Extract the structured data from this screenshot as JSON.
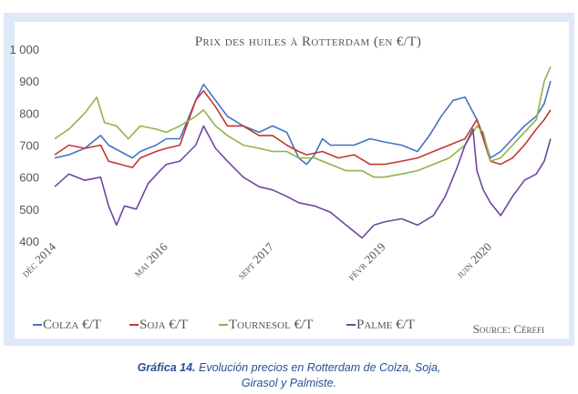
{
  "chart_data": {
    "type": "line",
    "title": "Prix des huiles à Rotterdam (en €/T)",
    "source": "Source: Cérefi",
    "ylim": [
      400,
      1000
    ],
    "yticks": [
      "400",
      "500",
      "600",
      "700",
      "800",
      "900",
      "1 000"
    ],
    "ytick_values": [
      400,
      500,
      600,
      700,
      800,
      900,
      1000
    ],
    "xlim": [
      2014.92,
      2021.25
    ],
    "xticks": [
      {
        "label": "déc 2014",
        "value": 2014.92
      },
      {
        "label": "mai 2016",
        "value": 2016.33
      },
      {
        "label": "sept 2017",
        "value": 2017.67
      },
      {
        "label": "févr 2019",
        "value": 2019.08
      },
      {
        "label": "juin 2020",
        "value": 2020.42
      }
    ],
    "grid": false,
    "legend_position": "bottom",
    "series": [
      {
        "name": "Colza €/T",
        "color": "#4472c4",
        "values": [
          [
            2014.92,
            660
          ],
          [
            2015.1,
            670
          ],
          [
            2015.3,
            690
          ],
          [
            2015.5,
            730
          ],
          [
            2015.6,
            700
          ],
          [
            2015.75,
            680
          ],
          [
            2015.9,
            660
          ],
          [
            2016.0,
            680
          ],
          [
            2016.2,
            700
          ],
          [
            2016.33,
            720
          ],
          [
            2016.5,
            720
          ],
          [
            2016.7,
            840
          ],
          [
            2016.8,
            890
          ],
          [
            2016.95,
            840
          ],
          [
            2017.1,
            790
          ],
          [
            2017.3,
            760
          ],
          [
            2017.5,
            740
          ],
          [
            2017.67,
            760
          ],
          [
            2017.85,
            740
          ],
          [
            2018.0,
            660
          ],
          [
            2018.1,
            640
          ],
          [
            2018.2,
            670
          ],
          [
            2018.3,
            720
          ],
          [
            2018.4,
            700
          ],
          [
            2018.5,
            700
          ],
          [
            2018.7,
            700
          ],
          [
            2018.9,
            720
          ],
          [
            2019.08,
            710
          ],
          [
            2019.3,
            700
          ],
          [
            2019.5,
            680
          ],
          [
            2019.65,
            730
          ],
          [
            2019.8,
            790
          ],
          [
            2019.95,
            840
          ],
          [
            2020.1,
            850
          ],
          [
            2020.25,
            780
          ],
          [
            2020.33,
            730
          ],
          [
            2020.42,
            660
          ],
          [
            2020.55,
            680
          ],
          [
            2020.7,
            720
          ],
          [
            2020.85,
            760
          ],
          [
            2021.0,
            790
          ],
          [
            2021.1,
            830
          ],
          [
            2021.18,
            900
          ]
        ]
      },
      {
        "name": "Soja €/T",
        "color": "#c0392b",
        "values": [
          [
            2014.92,
            670
          ],
          [
            2015.1,
            700
          ],
          [
            2015.3,
            690
          ],
          [
            2015.5,
            700
          ],
          [
            2015.6,
            650
          ],
          [
            2015.75,
            640
          ],
          [
            2015.9,
            630
          ],
          [
            2016.0,
            660
          ],
          [
            2016.2,
            680
          ],
          [
            2016.33,
            690
          ],
          [
            2016.5,
            700
          ],
          [
            2016.7,
            840
          ],
          [
            2016.8,
            870
          ],
          [
            2016.95,
            820
          ],
          [
            2017.1,
            760
          ],
          [
            2017.3,
            760
          ],
          [
            2017.5,
            730
          ],
          [
            2017.67,
            730
          ],
          [
            2017.85,
            700
          ],
          [
            2018.0,
            680
          ],
          [
            2018.1,
            670
          ],
          [
            2018.3,
            680
          ],
          [
            2018.5,
            660
          ],
          [
            2018.7,
            670
          ],
          [
            2018.9,
            640
          ],
          [
            2019.08,
            640
          ],
          [
            2019.3,
            650
          ],
          [
            2019.5,
            660
          ],
          [
            2019.7,
            680
          ],
          [
            2019.9,
            700
          ],
          [
            2020.1,
            720
          ],
          [
            2020.25,
            780
          ],
          [
            2020.33,
            720
          ],
          [
            2020.42,
            650
          ],
          [
            2020.55,
            640
          ],
          [
            2020.7,
            660
          ],
          [
            2020.85,
            700
          ],
          [
            2021.0,
            750
          ],
          [
            2021.1,
            780
          ],
          [
            2021.18,
            810
          ]
        ]
      },
      {
        "name": "Tournesol €/T",
        "color": "#8db34d",
        "values": [
          [
            2014.92,
            720
          ],
          [
            2015.1,
            750
          ],
          [
            2015.3,
            800
          ],
          [
            2015.45,
            850
          ],
          [
            2015.55,
            770
          ],
          [
            2015.7,
            760
          ],
          [
            2015.85,
            720
          ],
          [
            2016.0,
            760
          ],
          [
            2016.2,
            750
          ],
          [
            2016.33,
            740
          ],
          [
            2016.5,
            760
          ],
          [
            2016.7,
            790
          ],
          [
            2016.8,
            810
          ],
          [
            2016.95,
            760
          ],
          [
            2017.1,
            730
          ],
          [
            2017.3,
            700
          ],
          [
            2017.5,
            690
          ],
          [
            2017.67,
            680
          ],
          [
            2017.85,
            680
          ],
          [
            2018.0,
            660
          ],
          [
            2018.2,
            660
          ],
          [
            2018.4,
            640
          ],
          [
            2018.6,
            620
          ],
          [
            2018.8,
            620
          ],
          [
            2018.95,
            600
          ],
          [
            2019.08,
            600
          ],
          [
            2019.3,
            610
          ],
          [
            2019.5,
            620
          ],
          [
            2019.7,
            640
          ],
          [
            2019.9,
            660
          ],
          [
            2020.1,
            700
          ],
          [
            2020.25,
            760
          ],
          [
            2020.33,
            740
          ],
          [
            2020.42,
            650
          ],
          [
            2020.55,
            660
          ],
          [
            2020.7,
            700
          ],
          [
            2020.85,
            740
          ],
          [
            2021.0,
            780
          ],
          [
            2021.1,
            900
          ],
          [
            2021.18,
            945
          ]
        ]
      },
      {
        "name": "Palme €/T",
        "color": "#6f47a1",
        "values": [
          [
            2014.92,
            570
          ],
          [
            2015.1,
            610
          ],
          [
            2015.3,
            590
          ],
          [
            2015.5,
            600
          ],
          [
            2015.6,
            510
          ],
          [
            2015.7,
            450
          ],
          [
            2015.8,
            510
          ],
          [
            2015.95,
            500
          ],
          [
            2016.1,
            580
          ],
          [
            2016.25,
            620
          ],
          [
            2016.33,
            640
          ],
          [
            2016.5,
            650
          ],
          [
            2016.7,
            700
          ],
          [
            2016.8,
            760
          ],
          [
            2016.95,
            690
          ],
          [
            2017.1,
            650
          ],
          [
            2017.3,
            600
          ],
          [
            2017.5,
            570
          ],
          [
            2017.67,
            560
          ],
          [
            2017.85,
            540
          ],
          [
            2018.0,
            520
          ],
          [
            2018.2,
            510
          ],
          [
            2018.4,
            490
          ],
          [
            2018.55,
            460
          ],
          [
            2018.7,
            430
          ],
          [
            2018.8,
            410
          ],
          [
            2018.95,
            450
          ],
          [
            2019.08,
            460
          ],
          [
            2019.3,
            470
          ],
          [
            2019.5,
            450
          ],
          [
            2019.7,
            480
          ],
          [
            2019.85,
            540
          ],
          [
            2020.0,
            630
          ],
          [
            2020.1,
            700
          ],
          [
            2020.2,
            750
          ],
          [
            2020.25,
            620
          ],
          [
            2020.33,
            560
          ],
          [
            2020.42,
            520
          ],
          [
            2020.55,
            480
          ],
          [
            2020.7,
            540
          ],
          [
            2020.85,
            590
          ],
          [
            2021.0,
            610
          ],
          [
            2021.1,
            650
          ],
          [
            2021.18,
            720
          ]
        ]
      }
    ]
  },
  "caption": {
    "label": "Gráfica 14.",
    "text": " Evolución precios en Rotterdam de Colza, Soja,",
    "line2": "Girasol y Palmiste."
  }
}
